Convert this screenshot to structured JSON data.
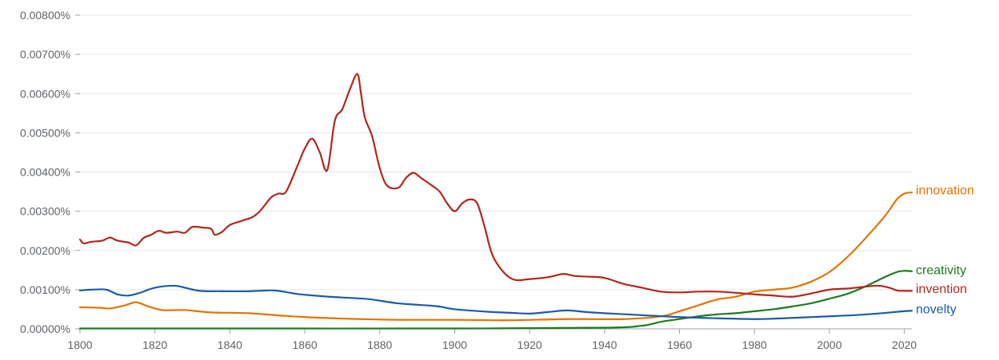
{
  "chart_data": {
    "type": "line",
    "title": "",
    "xlabel": "",
    "ylabel": "",
    "xlim": [
      1800,
      2022
    ],
    "ylim": [
      0,
      0.008
    ],
    "grid": true,
    "legend": "end-of-line labels (right)",
    "x_ticks": [
      1800,
      1820,
      1840,
      1860,
      1880,
      1900,
      1920,
      1940,
      1960,
      1980,
      2000,
      2020
    ],
    "x_tick_labels": [
      "1800",
      "1820",
      "1840",
      "1860",
      "1880",
      "1900",
      "1920",
      "1940",
      "1960",
      "1980",
      "2000",
      "2020"
    ],
    "y_ticks": [
      0,
      0.001,
      0.002,
      0.003,
      0.004,
      0.005,
      0.006,
      0.007,
      0.008
    ],
    "y_tick_labels": [
      "0.00000%",
      "0.00100%",
      "0.00200%",
      "0.00300%",
      "0.00400%",
      "0.00500%",
      "0.00600%",
      "0.00700%",
      "0.00800%"
    ],
    "series": [
      {
        "name": "innovation",
        "color": "#e37400",
        "points": [
          [
            1800,
            0.00055
          ],
          [
            1805,
            0.00054
          ],
          [
            1808,
            0.00052
          ],
          [
            1812,
            0.0006
          ],
          [
            1815,
            0.00068
          ],
          [
            1818,
            0.00058
          ],
          [
            1822,
            0.00048
          ],
          [
            1828,
            0.00048
          ],
          [
            1835,
            0.00042
          ],
          [
            1845,
            0.0004
          ],
          [
            1855,
            0.00033
          ],
          [
            1865,
            0.00028
          ],
          [
            1875,
            0.00025
          ],
          [
            1885,
            0.00023
          ],
          [
            1900,
            0.00023
          ],
          [
            1915,
            0.00022
          ],
          [
            1930,
            0.00025
          ],
          [
            1945,
            0.00025
          ],
          [
            1955,
            0.00032
          ],
          [
            1960,
            0.00045
          ],
          [
            1965,
            0.0006
          ],
          [
            1970,
            0.00075
          ],
          [
            1975,
            0.00082
          ],
          [
            1980,
            0.00095
          ],
          [
            1985,
            0.001
          ],
          [
            1990,
            0.00105
          ],
          [
            1995,
            0.0012
          ],
          [
            2000,
            0.00145
          ],
          [
            2005,
            0.00185
          ],
          [
            2010,
            0.00235
          ],
          [
            2015,
            0.0029
          ],
          [
            2018,
            0.0033
          ],
          [
            2020,
            0.00345
          ],
          [
            2022,
            0.00348
          ]
        ]
      },
      {
        "name": "creativity",
        "color": "#1e7b1e",
        "points": [
          [
            1800,
            1e-05
          ],
          [
            1850,
            1e-05
          ],
          [
            1900,
            1e-05
          ],
          [
            1940,
            3e-05
          ],
          [
            1950,
            8e-05
          ],
          [
            1955,
            0.00018
          ],
          [
            1960,
            0.00025
          ],
          [
            1965,
            0.00032
          ],
          [
            1970,
            0.00037
          ],
          [
            1975,
            0.0004
          ],
          [
            1980,
            0.00045
          ],
          [
            1985,
            0.0005
          ],
          [
            1990,
            0.00057
          ],
          [
            1995,
            0.00065
          ],
          [
            2000,
            0.00077
          ],
          [
            2005,
            0.0009
          ],
          [
            2010,
            0.0011
          ],
          [
            2015,
            0.00133
          ],
          [
            2018,
            0.00145
          ],
          [
            2020,
            0.00148
          ],
          [
            2022,
            0.00147
          ]
        ]
      },
      {
        "name": "invention",
        "color": "#b3261e",
        "points": [
          [
            1800,
            0.00228
          ],
          [
            1801,
            0.00218
          ],
          [
            1803,
            0.00222
          ],
          [
            1806,
            0.00225
          ],
          [
            1808,
            0.00233
          ],
          [
            1810,
            0.00225
          ],
          [
            1813,
            0.0022
          ],
          [
            1815,
            0.00213
          ],
          [
            1817,
            0.00232
          ],
          [
            1819,
            0.0024
          ],
          [
            1821,
            0.0025
          ],
          [
            1823,
            0.00245
          ],
          [
            1826,
            0.00248
          ],
          [
            1828,
            0.00245
          ],
          [
            1830,
            0.0026
          ],
          [
            1833,
            0.00258
          ],
          [
            1835,
            0.00255
          ],
          [
            1836,
            0.0024
          ],
          [
            1838,
            0.00248
          ],
          [
            1840,
            0.00265
          ],
          [
            1843,
            0.00275
          ],
          [
            1846,
            0.00285
          ],
          [
            1848,
            0.003
          ],
          [
            1851,
            0.00335
          ],
          [
            1853,
            0.00345
          ],
          [
            1855,
            0.0035
          ],
          [
            1858,
            0.00415
          ],
          [
            1860,
            0.0046
          ],
          [
            1862,
            0.00485
          ],
          [
            1864,
            0.0045
          ],
          [
            1866,
            0.00405
          ],
          [
            1868,
            0.0053
          ],
          [
            1870,
            0.0056
          ],
          [
            1872,
            0.0061
          ],
          [
            1874,
            0.0065
          ],
          [
            1875,
            0.006
          ],
          [
            1876,
            0.0054
          ],
          [
            1878,
            0.0049
          ],
          [
            1880,
            0.0041
          ],
          [
            1882,
            0.00365
          ],
          [
            1885,
            0.0036
          ],
          [
            1887,
            0.00385
          ],
          [
            1889,
            0.00398
          ],
          [
            1891,
            0.00385
          ],
          [
            1894,
            0.00365
          ],
          [
            1896,
            0.0035
          ],
          [
            1898,
            0.0032
          ],
          [
            1900,
            0.003
          ],
          [
            1902,
            0.0032
          ],
          [
            1904,
            0.0033
          ],
          [
            1906,
            0.0032
          ],
          [
            1908,
            0.0026
          ],
          [
            1910,
            0.0019
          ],
          [
            1913,
            0.00145
          ],
          [
            1916,
            0.00125
          ],
          [
            1920,
            0.00127
          ],
          [
            1925,
            0.00132
          ],
          [
            1929,
            0.0014
          ],
          [
            1932,
            0.00135
          ],
          [
            1936,
            0.00133
          ],
          [
            1940,
            0.0013
          ],
          [
            1945,
            0.00115
          ],
          [
            1950,
            0.00105
          ],
          [
            1955,
            0.00095
          ],
          [
            1960,
            0.00093
          ],
          [
            1965,
            0.00095
          ],
          [
            1970,
            0.00095
          ],
          [
            1975,
            0.00092
          ],
          [
            1980,
            0.00088
          ],
          [
            1985,
            0.00085
          ],
          [
            1990,
            0.00082
          ],
          [
            1995,
            0.0009
          ],
          [
            2000,
            0.001
          ],
          [
            2005,
            0.00103
          ],
          [
            2010,
            0.00108
          ],
          [
            2013,
            0.0011
          ],
          [
            2016,
            0.00105
          ],
          [
            2018,
            0.00098
          ],
          [
            2020,
            0.00097
          ],
          [
            2022,
            0.00097
          ]
        ]
      },
      {
        "name": "novelty",
        "color": "#1a5ca8",
        "points": [
          [
            1800,
            0.00098
          ],
          [
            1803,
            0.001
          ],
          [
            1807,
            0.001
          ],
          [
            1810,
            0.00088
          ],
          [
            1813,
            0.00085
          ],
          [
            1816,
            0.00092
          ],
          [
            1820,
            0.00105
          ],
          [
            1825,
            0.0011
          ],
          [
            1828,
            0.00105
          ],
          [
            1832,
            0.00097
          ],
          [
            1838,
            0.00096
          ],
          [
            1845,
            0.00096
          ],
          [
            1850,
            0.00098
          ],
          [
            1853,
            0.00097
          ],
          [
            1858,
            0.00089
          ],
          [
            1865,
            0.00083
          ],
          [
            1870,
            0.0008
          ],
          [
            1877,
            0.00076
          ],
          [
            1885,
            0.00065
          ],
          [
            1895,
            0.00058
          ],
          [
            1900,
            0.0005
          ],
          [
            1910,
            0.00043
          ],
          [
            1915,
            0.00041
          ],
          [
            1920,
            0.00039
          ],
          [
            1925,
            0.00043
          ],
          [
            1930,
            0.00047
          ],
          [
            1935,
            0.00043
          ],
          [
            1940,
            0.0004
          ],
          [
            1950,
            0.00035
          ],
          [
            1960,
            0.0003
          ],
          [
            1970,
            0.00027
          ],
          [
            1980,
            0.00025
          ],
          [
            1985,
            0.00026
          ],
          [
            1990,
            0.00028
          ],
          [
            2000,
            0.00032
          ],
          [
            2010,
            0.00037
          ],
          [
            2020,
            0.00045
          ],
          [
            2022,
            0.00046
          ]
        ]
      }
    ],
    "end_labels": [
      {
        "series": "innovation",
        "text": "innovation",
        "value": 0.00355
      },
      {
        "series": "creativity",
        "text": "creativity",
        "value": 0.00152
      },
      {
        "series": "invention",
        "text": "invention",
        "value": 0.00104
      },
      {
        "series": "novelty",
        "text": "novelty",
        "value": 0.00052
      }
    ]
  }
}
